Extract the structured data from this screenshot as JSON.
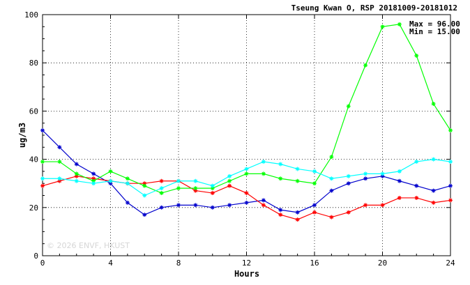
{
  "chart_data": {
    "type": "line",
    "title": "Tseung Kwan O, RSP 20181009-20181012",
    "xlabel": "Hours",
    "ylabel": "ug/m3",
    "xlim": [
      0,
      24
    ],
    "ylim": [
      0,
      100
    ],
    "x_ticks": [
      0,
      4,
      8,
      12,
      16,
      20,
      24
    ],
    "y_ticks": [
      0,
      20,
      40,
      60,
      80,
      100
    ],
    "grid": true,
    "stats": {
      "max": "Max = 96.00",
      "min": "Min = 15.00"
    },
    "watermark": "© 2026  ENVF, HKUST",
    "x": [
      0,
      1,
      2,
      3,
      4,
      5,
      6,
      7,
      8,
      9,
      10,
      11,
      12,
      13,
      14,
      15,
      16,
      17,
      18,
      19,
      20,
      21,
      22,
      23,
      24
    ],
    "series": [
      {
        "color": "#0000cc",
        "values": [
          52,
          45,
          38,
          34,
          30,
          22,
          17,
          20,
          21,
          21,
          20,
          21,
          22,
          23,
          19,
          18,
          21,
          27,
          30,
          32,
          33,
          31,
          29,
          27,
          29
        ]
      },
      {
        "color": "#ff0000",
        "values": [
          29,
          31,
          33,
          32,
          31,
          30,
          30,
          31,
          31,
          27,
          26,
          29,
          26,
          21,
          17,
          15,
          18,
          16,
          18,
          21,
          21,
          24,
          24,
          22,
          23
        ]
      },
      {
        "color": "#00ff00",
        "values": [
          39,
          39,
          34,
          31,
          35,
          32,
          29,
          26,
          28,
          28,
          28,
          31,
          34,
          34,
          32,
          31,
          30,
          41,
          62,
          79,
          95,
          96,
          83,
          63,
          52
        ]
      },
      {
        "color": "#00ffff",
        "values": [
          32,
          32,
          31,
          30,
          31,
          30,
          25,
          28,
          31,
          31,
          29,
          33,
          36,
          39,
          38,
          36,
          35,
          32,
          33,
          34,
          34,
          35,
          39,
          40,
          39
        ]
      }
    ]
  }
}
